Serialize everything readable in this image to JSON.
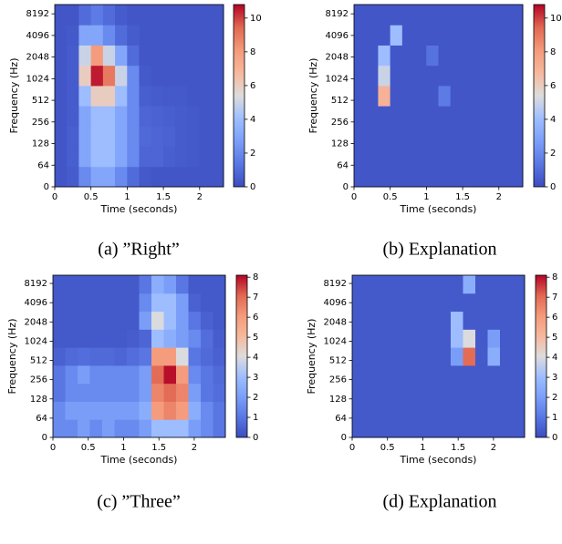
{
  "chart_data": [
    {
      "type": "heatmap",
      "title": "(a) ”Right”",
      "xlabel": "Time (seconds)",
      "ylabel": "Frequency (Hz)",
      "colormap": "coolwarm",
      "xlim": [
        0,
        2.33
      ],
      "xticks": [
        0,
        0.5,
        1,
        1.5,
        2
      ],
      "ylim": [
        0,
        11025
      ],
      "yscale": "symlog",
      "linthresh": 64,
      "yticks": [
        0,
        64,
        128,
        256,
        512,
        1024,
        2048,
        4096,
        8192
      ],
      "clim": [
        0,
        10.8
      ],
      "cticks": [
        0,
        2,
        4,
        6,
        8,
        10
      ],
      "z": [
        [
          0.3,
          0.5,
          2,
          3,
          3,
          2,
          1,
          0.4,
          0.3,
          0.3,
          0.3,
          0.3,
          0.3,
          0.3
        ],
        [
          0.3,
          0.6,
          3,
          4,
          4,
          3,
          2,
          0.8,
          0.8,
          0.6,
          0.5,
          0.4,
          0.3,
          0.3
        ],
        [
          0.3,
          0.6,
          3,
          4,
          4,
          3,
          2,
          0.9,
          0.8,
          0.7,
          0.5,
          0.4,
          0.3,
          0.3
        ],
        [
          0.3,
          0.5,
          3,
          4,
          4,
          3,
          2,
          0.8,
          0.7,
          0.6,
          0.5,
          0.4,
          0.3,
          0.3
        ],
        [
          0.3,
          0.5,
          4,
          6,
          6,
          4,
          2,
          0.6,
          0.5,
          0.4,
          0.4,
          0.3,
          0.3,
          0.3
        ],
        [
          0.3,
          0.5,
          6,
          10.5,
          9,
          5,
          2,
          0.4,
          0.3,
          0.3,
          0.3,
          0.3,
          0.3,
          0.3
        ],
        [
          0.3,
          0.5,
          5,
          8,
          5,
          3,
          1,
          0.3,
          0.3,
          0.3,
          0.3,
          0.3,
          0.3,
          0.3
        ],
        [
          0.3,
          0.4,
          3,
          3,
          2,
          1,
          0.5,
          0.3,
          0.3,
          0.3,
          0.3,
          0.3,
          0.3,
          0.3
        ],
        [
          0.3,
          0.3,
          1,
          1.5,
          1,
          0.5,
          0.3,
          0.3,
          0.3,
          0.3,
          0.3,
          0.3,
          0.3,
          0.3
        ]
      ]
    },
    {
      "type": "heatmap",
      "title": "(b) Explanation",
      "xlabel": "Time (seconds)",
      "ylabel": "Frequency (Hz)",
      "colormap": "coolwarm",
      "xlim": [
        0,
        2.33
      ],
      "xticks": [
        0,
        0.5,
        1,
        1.5,
        2
      ],
      "ylim": [
        0,
        11025
      ],
      "yscale": "symlog",
      "linthresh": 64,
      "yticks": [
        0,
        64,
        128,
        256,
        512,
        1024,
        2048,
        4096,
        8192
      ],
      "clim": [
        0,
        10.8
      ],
      "cticks": [
        0,
        2,
        4,
        6,
        8,
        10
      ],
      "z": [
        [
          0.3,
          0.3,
          0.3,
          0.3,
          0.3,
          0.3,
          0.3,
          0.3,
          0.3,
          0.3,
          0.3,
          0.3,
          0.3,
          0.3
        ],
        [
          0.3,
          0.3,
          0.3,
          0.3,
          0.3,
          0.3,
          0.3,
          0.3,
          0.3,
          0.3,
          0.3,
          0.3,
          0.3,
          0.3
        ],
        [
          0.3,
          0.3,
          0.3,
          0.3,
          0.3,
          0.3,
          0.3,
          0.3,
          0.3,
          0.3,
          0.3,
          0.3,
          0.3,
          0.3
        ],
        [
          0.3,
          0.3,
          0.3,
          0.3,
          0.3,
          0.3,
          0.3,
          0.3,
          0.3,
          0.3,
          0.3,
          0.3,
          0.3,
          0.3
        ],
        [
          0.3,
          0.3,
          7,
          0.3,
          0.3,
          0.3,
          0.3,
          1.5,
          0.3,
          0.3,
          0.3,
          0.3,
          0.3,
          0.3
        ],
        [
          0.3,
          0.3,
          5,
          0.3,
          0.3,
          0.3,
          0.3,
          0.3,
          0.3,
          0.3,
          0.3,
          0.3,
          0.3,
          0.3
        ],
        [
          0.3,
          0.3,
          4,
          0.3,
          0.3,
          0.3,
          1.2,
          0.3,
          0.3,
          0.3,
          0.3,
          0.3,
          0.3,
          0.3
        ],
        [
          0.3,
          0.3,
          0.3,
          4,
          0.3,
          0.3,
          0.3,
          0.3,
          0.3,
          0.3,
          0.3,
          0.3,
          0.3,
          0.3
        ],
        [
          0.3,
          0.3,
          0.3,
          0.3,
          0.3,
          0.3,
          0.3,
          0.3,
          0.3,
          0.3,
          0.3,
          0.3,
          0.3,
          0.3
        ]
      ]
    },
    {
      "type": "heatmap",
      "title": "(c) ”Three”",
      "xlabel": "Time (seconds)",
      "ylabel": "Frequency (Hz)",
      "colormap": "coolwarm",
      "xlim": [
        0,
        2.44
      ],
      "xticks": [
        0,
        0.5,
        1,
        1.5,
        2
      ],
      "ylim": [
        0,
        11025
      ],
      "yscale": "symlog",
      "linthresh": 64,
      "yticks": [
        0,
        64,
        128,
        256,
        512,
        1024,
        2048,
        4096,
        8192
      ],
      "clim": [
        0,
        8.1
      ],
      "cticks": [
        0,
        1,
        2,
        3,
        4,
        5,
        6,
        7,
        8
      ],
      "z": [
        [
          1.5,
          1.5,
          2,
          1.5,
          2,
          1.5,
          1.5,
          2,
          3,
          3,
          3,
          2,
          1.5,
          1
        ],
        [
          1.5,
          2,
          2,
          2,
          2,
          2,
          2,
          2.5,
          6,
          6.5,
          6,
          2.5,
          1.5,
          1
        ],
        [
          1,
          1.5,
          1.5,
          1.5,
          1.5,
          1.5,
          1.5,
          2,
          6.5,
          7,
          6.5,
          2,
          1,
          0.8
        ],
        [
          1,
          1.5,
          2,
          1.5,
          1.5,
          1.5,
          1.5,
          2,
          7,
          8,
          6,
          1.5,
          1,
          0.7
        ],
        [
          0.5,
          0.7,
          0.8,
          0.7,
          0.7,
          0.6,
          0.8,
          1,
          6,
          6,
          4,
          1,
          0.7,
          0.5
        ],
        [
          0.3,
          0.3,
          0.3,
          0.3,
          0.3,
          0.3,
          0.4,
          0.6,
          3,
          2.5,
          2,
          1.5,
          0.8,
          0.4
        ],
        [
          0.3,
          0.3,
          0.3,
          0.3,
          0.3,
          0.3,
          0.3,
          2,
          4,
          3,
          2,
          1,
          0.5,
          0.3
        ],
        [
          0.3,
          0.3,
          0.3,
          0.3,
          0.3,
          0.3,
          0.3,
          1.5,
          3,
          3,
          2,
          0.5,
          0.3,
          0.3
        ],
        [
          0.3,
          0.3,
          0.3,
          0.3,
          0.3,
          0.3,
          0.3,
          1,
          2.5,
          2,
          1,
          0.3,
          0.3,
          0.3
        ]
      ]
    },
    {
      "type": "heatmap",
      "title": "(d) Explanation",
      "xlabel": "Time (seconds)",
      "ylabel": "Frequency (Hz)",
      "colormap": "coolwarm",
      "xlim": [
        0,
        2.44
      ],
      "xticks": [
        0,
        0.5,
        1,
        1.5,
        2
      ],
      "ylim": [
        0,
        11025
      ],
      "yscale": "symlog",
      "linthresh": 64,
      "yticks": [
        0,
        64,
        128,
        256,
        512,
        1024,
        2048,
        4096,
        8192
      ],
      "clim": [
        0,
        8.1
      ],
      "cticks": [
        0,
        1,
        2,
        3,
        4,
        5,
        6,
        7,
        8
      ],
      "z": [
        [
          0.3,
          0.3,
          0.3,
          0.3,
          0.3,
          0.3,
          0.3,
          0.3,
          0.3,
          0.3,
          0.3,
          0.3,
          0.3,
          0.3
        ],
        [
          0.3,
          0.3,
          0.3,
          0.3,
          0.3,
          0.3,
          0.3,
          0.3,
          0.3,
          0.3,
          0.3,
          0.3,
          0.3,
          0.3
        ],
        [
          0.3,
          0.3,
          0.3,
          0.3,
          0.3,
          0.3,
          0.3,
          0.3,
          0.3,
          0.3,
          0.3,
          0.3,
          0.3,
          0.3
        ],
        [
          0.3,
          0.3,
          0.3,
          0.3,
          0.3,
          0.3,
          0.3,
          0.3,
          0.3,
          0.3,
          0.3,
          0.3,
          0.3,
          0.3
        ],
        [
          0.3,
          0.3,
          0.3,
          0.3,
          0.3,
          0.3,
          0.3,
          0.3,
          2,
          7,
          0.3,
          2.5,
          0.3,
          0.3
        ],
        [
          0.3,
          0.3,
          0.3,
          0.3,
          0.3,
          0.3,
          0.3,
          0.3,
          3,
          4,
          0.3,
          2,
          0.3,
          0.3
        ],
        [
          0.3,
          0.3,
          0.3,
          0.3,
          0.3,
          0.3,
          0.3,
          0.3,
          3,
          0.3,
          0.3,
          0.3,
          0.3,
          0.3
        ],
        [
          0.3,
          0.3,
          0.3,
          0.3,
          0.3,
          0.3,
          0.3,
          0.3,
          0.3,
          0.3,
          0.3,
          0.3,
          0.3,
          0.3
        ],
        [
          0.3,
          0.3,
          0.3,
          0.3,
          0.3,
          0.3,
          0.3,
          0.3,
          0.3,
          2.5,
          0.3,
          0.3,
          0.3,
          0.3
        ]
      ]
    }
  ]
}
